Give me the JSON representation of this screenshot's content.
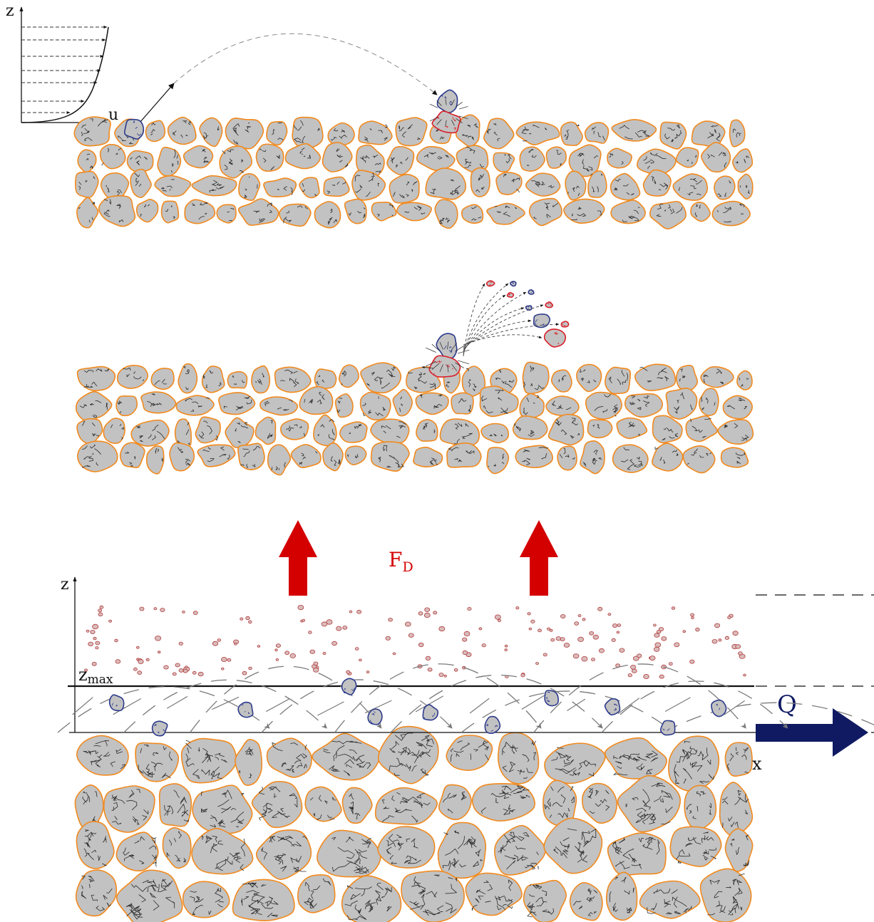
{
  "profile": {
    "z_label": "z",
    "u_label": "u"
  },
  "forces": {
    "fd_main": "F",
    "fd_sub": "D"
  },
  "axes": {
    "z_label": "z",
    "x_label": "x",
    "zmax_main": "z",
    "zmax_sub": "max",
    "q_label": "Q"
  },
  "colors": {
    "grain_fill": "#c2c2c2",
    "grain_stroke": "#f28a1e",
    "crack": "#2b2b2b",
    "impact_grain": "#2c3a8c",
    "target_grain": "#d9202a",
    "force_arrow": "#d40000",
    "flow_arrow": "#0f1a63",
    "suspended": "#b23a3a",
    "dash": "#7a7a7a"
  },
  "icons": [
    "arrow-up-icon",
    "arrow-right-icon"
  ]
}
